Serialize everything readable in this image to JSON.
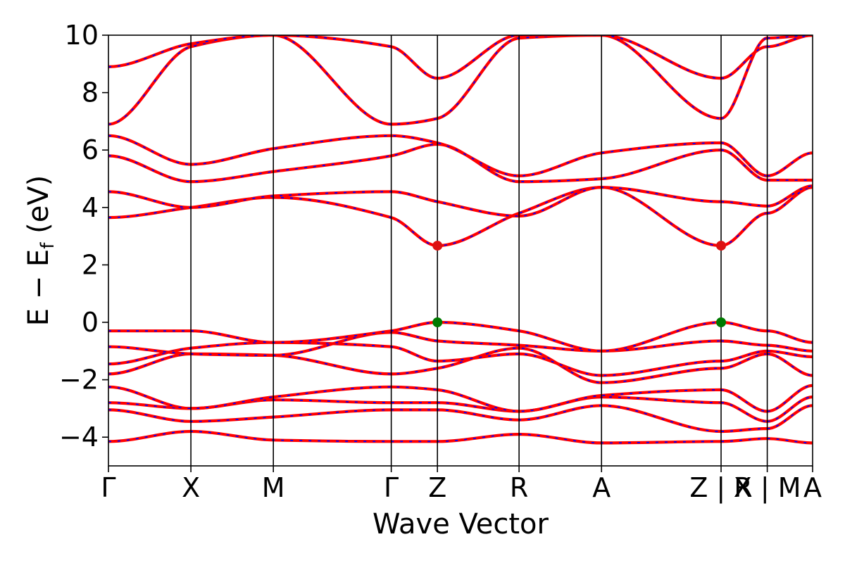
{
  "chart_data": {
    "type": "line",
    "title": "",
    "xlabel": "Wave Vector",
    "ylabel": "E − E",
    "ylabel_subscript": "f",
    "ylabel_unit": "(eV)",
    "ylim": [
      -5,
      10
    ],
    "yticks": [
      -4,
      -2,
      0,
      2,
      4,
      6,
      8,
      10
    ],
    "ytick_labels": [
      "−4",
      "−2",
      "0",
      "2",
      "4",
      "6",
      "8",
      "10"
    ],
    "kpoint_positions": [
      0,
      1,
      2,
      3.43,
      3.99,
      4.98,
      5.98,
      7.43,
      7.99,
      8.54
    ],
    "kpoint_labels": [
      "Γ",
      "X",
      "M",
      "Γ",
      "Z",
      "R",
      "A",
      "Z | R",
      "X | M",
      "A"
    ],
    "segment_breaks": [
      7.43,
      7.99
    ],
    "colors": {
      "band": "#ff0000",
      "band_dash": "#0000ff",
      "cbm_marker": "#dd1111",
      "vbm_marker": "#007a00",
      "vline": "#000000"
    },
    "markers": [
      {
        "kind": "CBM",
        "x": 3.99,
        "y": 2.67
      },
      {
        "kind": "CBM",
        "x": 7.43,
        "y": 2.67
      },
      {
        "kind": "VBM",
        "x": 3.99,
        "y": 0.0
      },
      {
        "kind": "VBM",
        "x": 7.43,
        "y": 0.0
      }
    ],
    "bands_approx": [
      {
        "name": "band-v1",
        "x": [
          0,
          1,
          2,
          3.43,
          3.99,
          4.98,
          5.98,
          7.43,
          7.99,
          8.54
        ],
        "y": [
          -4.15,
          -3.8,
          -4.1,
          -4.15,
          -4.15,
          -3.9,
          -4.2,
          -4.15,
          -4.05,
          -4.2
        ]
      },
      {
        "name": "band-v2",
        "x": [
          0,
          1,
          2,
          3.43,
          3.99,
          4.98,
          5.98,
          7.43,
          7.99,
          8.54
        ],
        "y": [
          -3.05,
          -3.45,
          -3.3,
          -3.05,
          -3.05,
          -3.4,
          -2.9,
          -3.8,
          -3.7,
          -2.9
        ]
      },
      {
        "name": "band-v3",
        "x": [
          0,
          1,
          2,
          3.43,
          3.99,
          4.98,
          5.98,
          7.43,
          7.99,
          8.54
        ],
        "y": [
          -2.8,
          -3.0,
          -2.7,
          -2.8,
          -2.8,
          -3.1,
          -2.6,
          -2.8,
          -3.45,
          -2.6
        ]
      },
      {
        "name": "band-v4",
        "x": [
          0,
          1,
          2,
          3.43,
          3.99,
          4.98,
          5.98,
          7.43,
          7.99,
          8.54
        ],
        "y": [
          -2.25,
          -3.0,
          -2.6,
          -2.25,
          -2.35,
          -3.1,
          -2.55,
          -2.35,
          -3.1,
          -2.2
        ]
      },
      {
        "name": "band-v5",
        "x": [
          0,
          1,
          2,
          3.43,
          3.99,
          4.98,
          5.98,
          7.43,
          7.99,
          8.54
        ],
        "y": [
          -1.8,
          -1.1,
          -1.15,
          -1.8,
          -1.6,
          -0.9,
          -2.1,
          -1.6,
          -1.1,
          -1.85
        ]
      },
      {
        "name": "band-v6",
        "x": [
          0,
          1,
          2,
          3.43,
          3.99,
          4.98,
          5.98,
          7.43,
          7.99,
          8.54
        ],
        "y": [
          -1.45,
          -0.9,
          -0.7,
          -0.85,
          -1.35,
          -1.1,
          -1.85,
          -1.35,
          -1.0,
          -1.2
        ]
      },
      {
        "name": "band-v7",
        "x": [
          0,
          1,
          2,
          3.43,
          3.99,
          4.98,
          5.98,
          7.43,
          7.99,
          8.54
        ],
        "y": [
          -0.85,
          -1.1,
          -1.15,
          -0.35,
          -0.65,
          -0.8,
          -1.0,
          -0.65,
          -0.8,
          -1.0
        ]
      },
      {
        "name": "band-v8",
        "x": [
          0,
          1,
          2,
          3.43,
          3.99,
          4.98,
          5.98,
          7.43,
          7.99,
          8.54
        ],
        "y": [
          -0.3,
          -0.3,
          -0.7,
          -0.3,
          0.0,
          -0.3,
          -1.0,
          0.0,
          -0.3,
          -0.7
        ]
      },
      {
        "name": "band-c1",
        "x": [
          0,
          1,
          2,
          3.43,
          3.99,
          4.98,
          5.98,
          7.43,
          7.99,
          8.54
        ],
        "y": [
          3.65,
          4.0,
          4.35,
          3.65,
          2.67,
          3.8,
          4.7,
          2.67,
          3.8,
          4.7
        ]
      },
      {
        "name": "band-c2",
        "x": [
          0,
          1,
          2,
          3.43,
          3.99,
          4.98,
          5.98,
          7.43,
          7.99,
          8.54
        ],
        "y": [
          4.55,
          4.0,
          4.4,
          4.55,
          4.2,
          3.7,
          4.7,
          4.2,
          4.05,
          4.75
        ]
      },
      {
        "name": "band-c3",
        "x": [
          0,
          1,
          2,
          3.43,
          3.99,
          4.98,
          5.98,
          7.43,
          7.99,
          8.54
        ],
        "y": [
          5.8,
          4.9,
          5.25,
          5.8,
          6.2,
          4.9,
          5.0,
          6.0,
          4.95,
          4.95
        ]
      },
      {
        "name": "band-c4",
        "x": [
          0,
          1,
          2,
          3.43,
          3.99,
          4.98,
          5.98,
          7.43,
          7.99,
          8.54
        ],
        "y": [
          6.5,
          5.5,
          6.05,
          6.5,
          6.25,
          5.1,
          5.9,
          6.25,
          5.1,
          5.9
        ]
      },
      {
        "name": "band-c5",
        "x": [
          0,
          1,
          2,
          3.43,
          3.99,
          4.98,
          5.98,
          7.43,
          7.99,
          8.54
        ],
        "y": [
          6.9,
          9.6,
          10.0,
          6.9,
          7.1,
          9.9,
          10.0,
          7.1,
          9.9,
          10.0
        ]
      },
      {
        "name": "band-c6",
        "x": [
          0,
          1,
          2,
          3.43,
          3.99,
          4.98,
          5.98,
          7.43,
          7.99,
          8.54
        ],
        "y": [
          8.9,
          9.7,
          10.0,
          9.6,
          8.5,
          10.0,
          10.0,
          8.5,
          9.6,
          10.0
        ]
      }
    ]
  }
}
